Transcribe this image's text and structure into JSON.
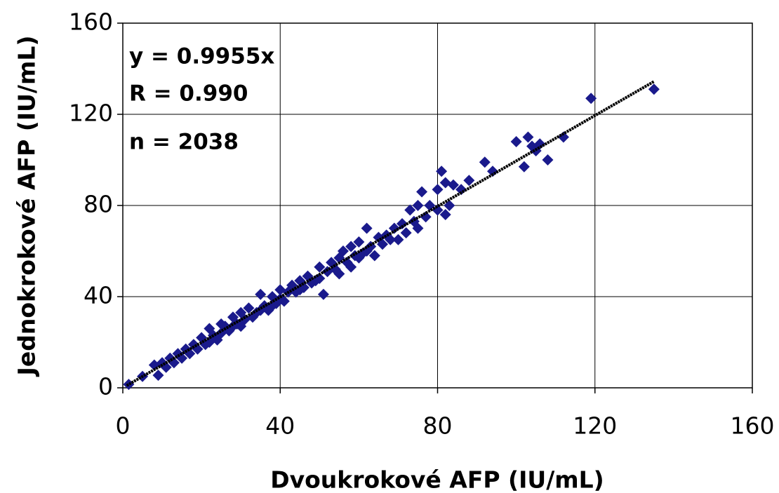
{
  "chart_data": {
    "type": "scatter",
    "x_label": "Dvoukrokové AFP (IU/mL)",
    "y_label": "Jednokrokové AFP (IU/mL)",
    "annotations": [
      "y = 0.9955x",
      "R = 0.990",
      "n = 2038"
    ],
    "xlim": [
      0,
      160
    ],
    "ylim": [
      0,
      160
    ],
    "xticks": [
      0,
      40,
      80,
      120,
      160
    ],
    "yticks": [
      0,
      40,
      80,
      120,
      160
    ],
    "grid": true,
    "series": [
      {
        "color": "#1a1a8c",
        "x": [
          1.5,
          5,
          8,
          9,
          10,
          11,
          12,
          13,
          14,
          15,
          16,
          17,
          18,
          19,
          20,
          21,
          22,
          22,
          23,
          24,
          25,
          25,
          26,
          27,
          28,
          28,
          29,
          30,
          30,
          31,
          32,
          33,
          34,
          35,
          35,
          36,
          37,
          38,
          38,
          39,
          40,
          40,
          41,
          42,
          43,
          44,
          45,
          45,
          46,
          47,
          48,
          49,
          50,
          50,
          51,
          52,
          53,
          54,
          55,
          55,
          56,
          57,
          58,
          58,
          59,
          60,
          60,
          61,
          62,
          62,
          63,
          64,
          65,
          66,
          67,
          68,
          69,
          70,
          71,
          72,
          73,
          74,
          75,
          75,
          76,
          77,
          78,
          80,
          80,
          81,
          82,
          82,
          83,
          84,
          86,
          88,
          92,
          94,
          100,
          102,
          103,
          104,
          105,
          106,
          108,
          112,
          119,
          135
        ],
        "y": [
          1.5,
          5,
          10,
          5.5,
          11,
          9,
          13,
          11,
          15,
          13,
          17,
          15,
          19,
          17,
          22,
          19,
          26,
          20,
          23,
          21,
          28,
          24,
          27,
          25,
          31,
          27,
          28,
          33,
          27,
          30,
          35,
          31,
          33,
          41,
          34,
          36,
          34,
          40,
          36,
          37,
          43,
          39,
          38,
          42,
          45,
          42,
          47,
          43,
          44,
          49,
          46,
          47,
          53,
          48,
          41,
          51,
          55,
          52,
          57,
          50,
          60,
          55,
          62,
          53,
          58,
          64,
          57,
          59,
          70,
          60,
          62,
          58,
          66,
          63,
          67,
          65,
          70,
          65,
          72,
          68,
          78,
          73,
          80,
          70,
          86,
          75,
          80,
          78,
          87,
          95,
          76,
          90,
          80,
          89,
          87,
          91,
          99,
          95,
          108,
          97,
          110,
          106,
          104,
          107,
          100,
          110,
          127,
          131
        ]
      }
    ],
    "trendline": {
      "color": "#000000",
      "x": [
        1,
        135
      ],
      "y": [
        1,
        134.4
      ]
    }
  }
}
